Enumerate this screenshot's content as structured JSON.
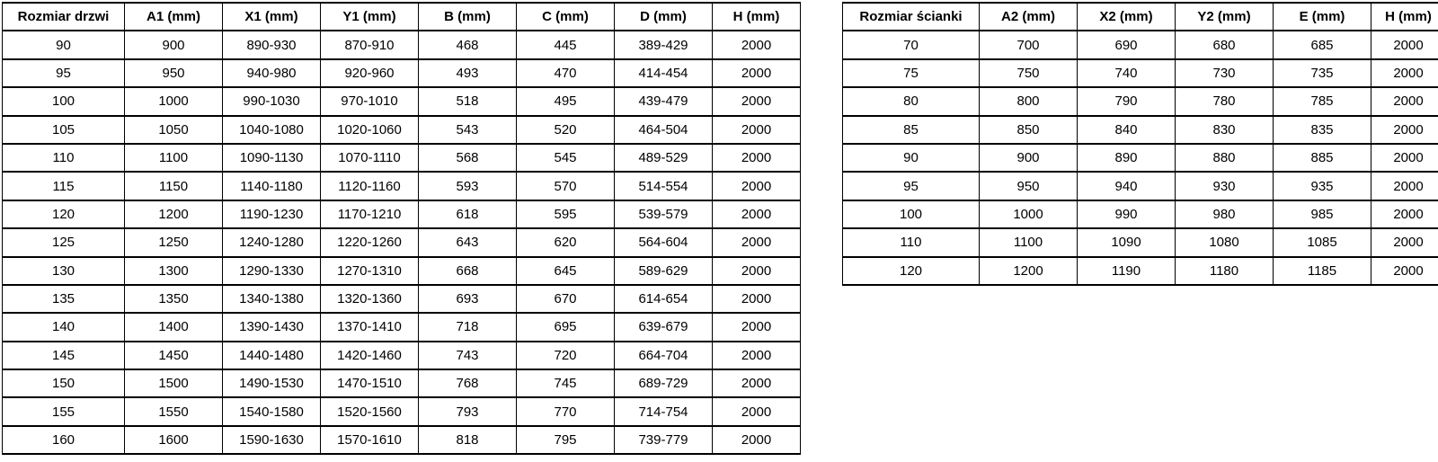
{
  "colors": {
    "border": "#000000",
    "text": "#000000",
    "background": "#ffffff"
  },
  "door_table": {
    "headers": [
      "Rozmiar drzwi",
      "A1 (mm)",
      "X1 (mm)",
      "Y1 (mm)",
      "B (mm)",
      "C (mm)",
      "D (mm)",
      "H (mm)"
    ],
    "rows": [
      [
        "90",
        "900",
        "890-930",
        "870-910",
        "468",
        "445",
        "389-429",
        "2000"
      ],
      [
        "95",
        "950",
        "940-980",
        "920-960",
        "493",
        "470",
        "414-454",
        "2000"
      ],
      [
        "100",
        "1000",
        "990-1030",
        "970-1010",
        "518",
        "495",
        "439-479",
        "2000"
      ],
      [
        "105",
        "1050",
        "1040-1080",
        "1020-1060",
        "543",
        "520",
        "464-504",
        "2000"
      ],
      [
        "110",
        "1100",
        "1090-1130",
        "1070-1110",
        "568",
        "545",
        "489-529",
        "2000"
      ],
      [
        "115",
        "1150",
        "1140-1180",
        "1120-1160",
        "593",
        "570",
        "514-554",
        "2000"
      ],
      [
        "120",
        "1200",
        "1190-1230",
        "1170-1210",
        "618",
        "595",
        "539-579",
        "2000"
      ],
      [
        "125",
        "1250",
        "1240-1280",
        "1220-1260",
        "643",
        "620",
        "564-604",
        "2000"
      ],
      [
        "130",
        "1300",
        "1290-1330",
        "1270-1310",
        "668",
        "645",
        "589-629",
        "2000"
      ],
      [
        "135",
        "1350",
        "1340-1380",
        "1320-1360",
        "693",
        "670",
        "614-654",
        "2000"
      ],
      [
        "140",
        "1400",
        "1390-1430",
        "1370-1410",
        "718",
        "695",
        "639-679",
        "2000"
      ],
      [
        "145",
        "1450",
        "1440-1480",
        "1420-1460",
        "743",
        "720",
        "664-704",
        "2000"
      ],
      [
        "150",
        "1500",
        "1490-1530",
        "1470-1510",
        "768",
        "745",
        "689-729",
        "2000"
      ],
      [
        "155",
        "1550",
        "1540-1580",
        "1520-1560",
        "793",
        "770",
        "714-754",
        "2000"
      ],
      [
        "160",
        "1600",
        "1590-1630",
        "1570-1610",
        "818",
        "795",
        "739-779",
        "2000"
      ]
    ]
  },
  "wall_table": {
    "headers": [
      "Rozmiar ścianki",
      "A2 (mm)",
      "X2 (mm)",
      "Y2 (mm)",
      "E (mm)",
      "H (mm)"
    ],
    "rows": [
      [
        "70",
        "700",
        "690",
        "680",
        "685",
        "2000"
      ],
      [
        "75",
        "750",
        "740",
        "730",
        "735",
        "2000"
      ],
      [
        "80",
        "800",
        "790",
        "780",
        "785",
        "2000"
      ],
      [
        "85",
        "850",
        "840",
        "830",
        "835",
        "2000"
      ],
      [
        "90",
        "900",
        "890",
        "880",
        "885",
        "2000"
      ],
      [
        "95",
        "950",
        "940",
        "930",
        "935",
        "2000"
      ],
      [
        "100",
        "1000",
        "990",
        "980",
        "985",
        "2000"
      ],
      [
        "110",
        "1100",
        "1090",
        "1080",
        "1085",
        "2000"
      ],
      [
        "120",
        "1200",
        "1190",
        "1180",
        "1185",
        "2000"
      ]
    ]
  }
}
